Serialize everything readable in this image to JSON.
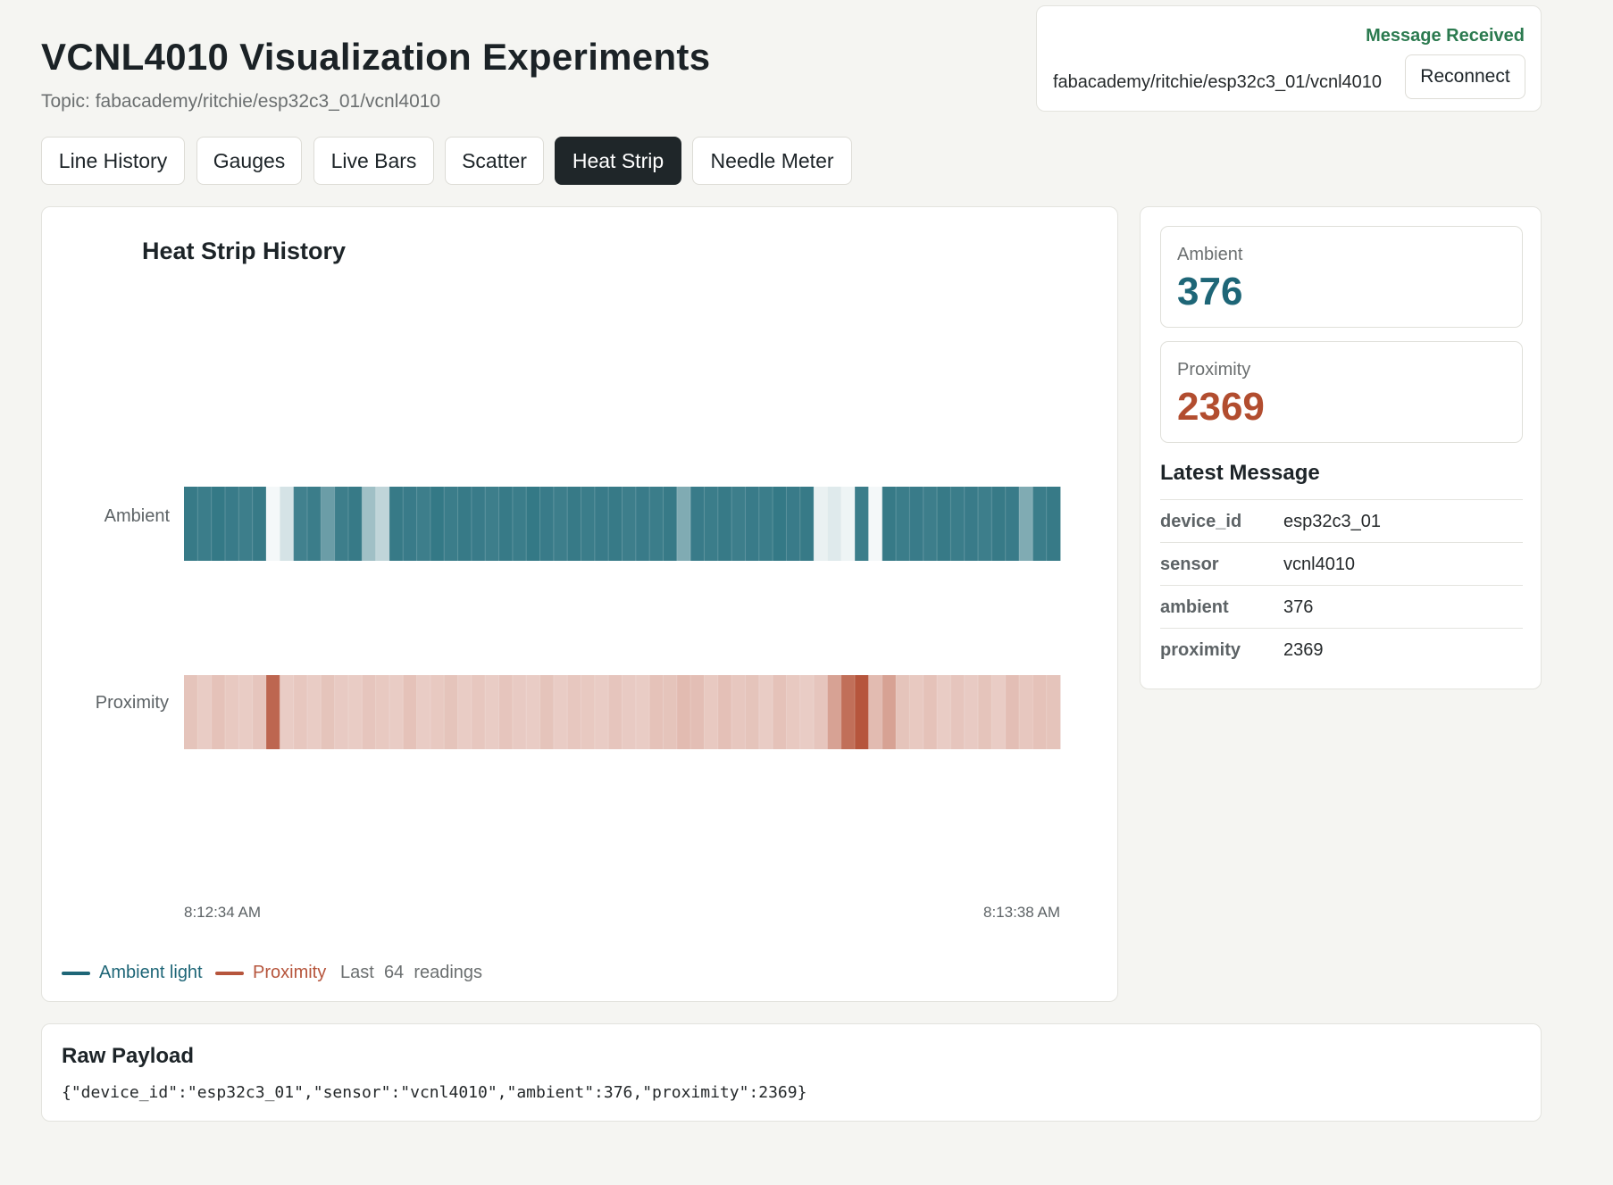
{
  "header": {
    "title": "VCNL4010 Visualization Experiments",
    "topic": "Topic: fabacademy/ritchie/esp32c3_01/vcnl4010"
  },
  "status": {
    "label": "Message Received",
    "label_color": "#2b7a4f",
    "topic": "fabacademy/ritchie/esp32c3_01/vcnl4010",
    "reconnect_label": "Reconnect"
  },
  "tabs": [
    {
      "label": "Line History",
      "active": false
    },
    {
      "label": "Gauges",
      "active": false
    },
    {
      "label": "Live Bars",
      "active": false
    },
    {
      "label": "Scatter",
      "active": false
    },
    {
      "label": "Heat Strip",
      "active": true
    },
    {
      "label": "Needle Meter",
      "active": false
    }
  ],
  "chart": {
    "title": "Heat Strip History",
    "legend": {
      "ambient": "Ambient light",
      "proximity": "Proximity",
      "last_prefix": "Last",
      "count": "64",
      "last_suffix": "readings"
    }
  },
  "chart_data": {
    "type": "heatmap",
    "title": "Heat Strip History",
    "rows": [
      "Ambient",
      "Proximity"
    ],
    "x_start_label": "8:12:34 AM",
    "x_end_label": "8:13:38 AM",
    "count": 64,
    "colors": {
      "ambient": "#2c7381",
      "proximity": "#b6553c"
    },
    "series": [
      {
        "name": "Ambient",
        "intensity": [
          0.95,
          0.93,
          0.96,
          0.94,
          0.92,
          0.95,
          0.05,
          0.2,
          0.9,
          0.93,
          0.7,
          0.92,
          0.95,
          0.45,
          0.3,
          0.95,
          0.94,
          0.92,
          0.96,
          0.93,
          0.95,
          0.94,
          0.92,
          0.95,
          0.93,
          0.96,
          0.94,
          0.92,
          0.95,
          0.93,
          0.94,
          0.95,
          0.92,
          0.94,
          0.93,
          0.95,
          0.6,
          0.94,
          0.93,
          0.95,
          0.92,
          0.94,
          0.93,
          0.96,
          0.94,
          0.95,
          0.1,
          0.15,
          0.08,
          0.93,
          0.05,
          0.95,
          0.93,
          0.94,
          0.92,
          0.95,
          0.93,
          0.94,
          0.92,
          0.95,
          0.94,
          0.6,
          0.93,
          0.95
        ]
      },
      {
        "name": "Proximity",
        "intensity": [
          0.35,
          0.3,
          0.36,
          0.32,
          0.3,
          0.34,
          0.9,
          0.3,
          0.33,
          0.3,
          0.35,
          0.31,
          0.3,
          0.34,
          0.32,
          0.3,
          0.36,
          0.3,
          0.32,
          0.35,
          0.3,
          0.33,
          0.3,
          0.34,
          0.31,
          0.3,
          0.35,
          0.3,
          0.33,
          0.32,
          0.3,
          0.34,
          0.31,
          0.3,
          0.36,
          0.35,
          0.4,
          0.38,
          0.32,
          0.37,
          0.33,
          0.35,
          0.3,
          0.36,
          0.32,
          0.3,
          0.34,
          0.55,
          0.85,
          1.0,
          0.4,
          0.55,
          0.35,
          0.32,
          0.36,
          0.3,
          0.34,
          0.31,
          0.35,
          0.3,
          0.38,
          0.33,
          0.36,
          0.35
        ]
      }
    ]
  },
  "metrics": {
    "ambient": {
      "label": "Ambient",
      "value": "376",
      "color": "#1e6677"
    },
    "proximity": {
      "label": "Proximity",
      "value": "2369",
      "color": "#b24d2f"
    }
  },
  "latest": {
    "title": "Latest Message",
    "rows": [
      {
        "key": "device_id",
        "value": "esp32c3_01"
      },
      {
        "key": "sensor",
        "value": "vcnl4010"
      },
      {
        "key": "ambient",
        "value": "376"
      },
      {
        "key": "proximity",
        "value": "2369"
      }
    ]
  },
  "raw": {
    "title": "Raw Payload",
    "text": "{\"device_id\":\"esp32c3_01\",\"sensor\":\"vcnl4010\",\"ambient\":376,\"proximity\":2369}"
  }
}
